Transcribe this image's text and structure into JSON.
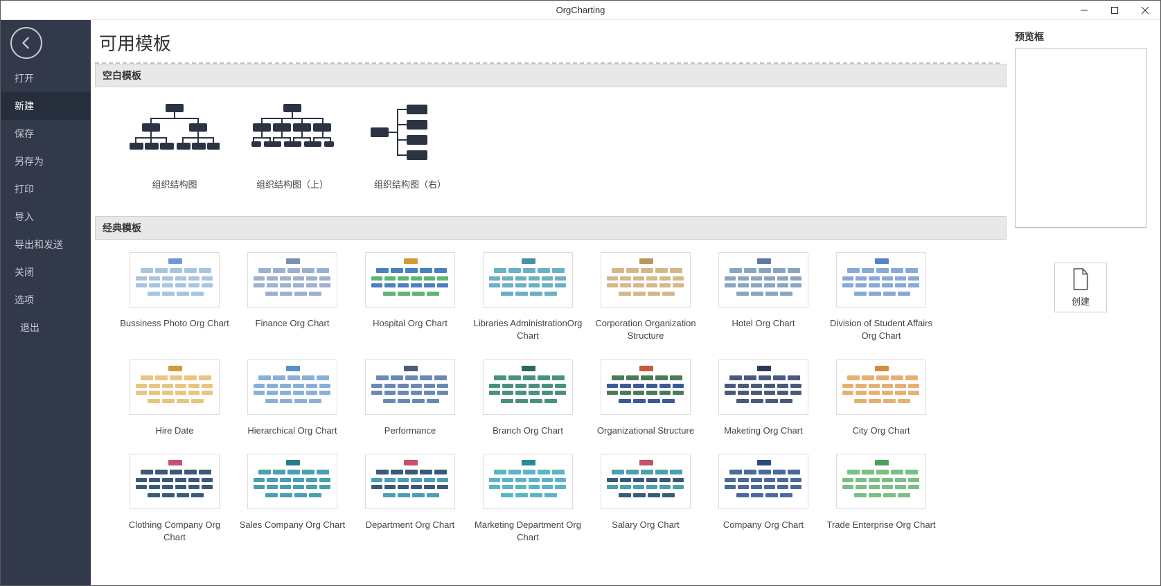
{
  "window": {
    "title": "OrgCharting"
  },
  "colors": {
    "sidebar_bg": "#31394a",
    "sidebar_text": "#c8ccd4",
    "sidebar_active_bg": "#262d3b",
    "node_dark": "#2c3444",
    "section_bg": "#e8e8e8",
    "border_gray": "#d0d0d0"
  },
  "sidebar": {
    "items": [
      {
        "label": "打开",
        "active": false
      },
      {
        "label": "新建",
        "active": true
      },
      {
        "label": "保存",
        "active": false
      },
      {
        "label": "另存为",
        "active": false
      },
      {
        "label": "打印",
        "active": false
      },
      {
        "label": "导入",
        "active": false
      },
      {
        "label": "导出和发送",
        "active": false
      },
      {
        "label": "关闭",
        "active": false
      },
      {
        "label": "选项",
        "active": false
      },
      {
        "label": "退出",
        "active": false,
        "indent": true
      }
    ]
  },
  "page": {
    "title": "可用模板"
  },
  "sections": {
    "blank": {
      "header": "空白模板",
      "templates": [
        {
          "label": "组织结构图",
          "layout": "down"
        },
        {
          "label": "组织结构图（上）",
          "layout": "up"
        },
        {
          "label": "组织结构图（右）",
          "layout": "right"
        }
      ]
    },
    "classic": {
      "header": "经典模板",
      "templates": [
        {
          "label": "Bussiness Photo Org Chart",
          "palette": [
            "#6b9bd1",
            "#a8c5e0"
          ]
        },
        {
          "label": "Finance Org Chart",
          "palette": [
            "#7b8fb5",
            "#9cb0d0"
          ]
        },
        {
          "label": "Hospital Org Chart",
          "palette": [
            "#d49a3a",
            "#4a7fc0",
            "#5fb56f"
          ]
        },
        {
          "label": "Libraries AdministrationOrg Chart",
          "palette": [
            "#4a8fa8",
            "#6bb0c5"
          ]
        },
        {
          "label": "Corporation Organization Structure",
          "palette": [
            "#b8975f",
            "#d4b888"
          ]
        },
        {
          "label": "Hotel Org Chart",
          "palette": [
            "#5a7a9e",
            "#8aa5c0"
          ]
        },
        {
          "label": "Division of Student Affairs Org Chart",
          "palette": [
            "#5585c0",
            "#88aad5"
          ]
        },
        {
          "label": "Hire Date",
          "palette": [
            "#d49a3a",
            "#e8c580"
          ]
        },
        {
          "label": "Hierarchical Org Chart",
          "palette": [
            "#5a8fc5",
            "#88b0da"
          ]
        },
        {
          "label": "Performance",
          "palette": [
            "#4a5a7a",
            "#6a8ab5"
          ]
        },
        {
          "label": "Branch Org Chart",
          "palette": [
            "#2a6a5a",
            "#4a9080"
          ]
        },
        {
          "label": "Organizational Structure",
          "palette": [
            "#c85a3a",
            "#4a7a5a",
            "#3a5a9a"
          ]
        },
        {
          "label": "Maketing Org Chart",
          "palette": [
            "#2a3a5a",
            "#4a5a7a"
          ]
        },
        {
          "label": "City Org Chart",
          "palette": [
            "#d88a3a",
            "#e8b070"
          ]
        },
        {
          "label": "Clothing Company Org Chart",
          "palette": [
            "#c8506a",
            "#3a5a7a"
          ]
        },
        {
          "label": "Sales Company Org Chart",
          "palette": [
            "#2a7a8a",
            "#4aa0b0"
          ]
        },
        {
          "label": "Department Org Chart",
          "palette": [
            "#c8506a",
            "#3a5a7a",
            "#4aa0b0"
          ]
        },
        {
          "label": "Marketing Department Org Chart",
          "palette": [
            "#2a8a9a",
            "#5ab5c5"
          ]
        },
        {
          "label": "Salary Org Chart",
          "palette": [
            "#c8506a",
            "#4aa0b0",
            "#3a5a7a"
          ]
        },
        {
          "label": "Company Org Chart",
          "palette": [
            "#2a4a7a",
            "#4a6a9a"
          ]
        },
        {
          "label": "Trade Enterprise Org Chart",
          "palette": [
            "#4aa05a",
            "#7ac085"
          ]
        }
      ]
    }
  },
  "preview": {
    "title": "预览框",
    "create_label": "创建"
  }
}
